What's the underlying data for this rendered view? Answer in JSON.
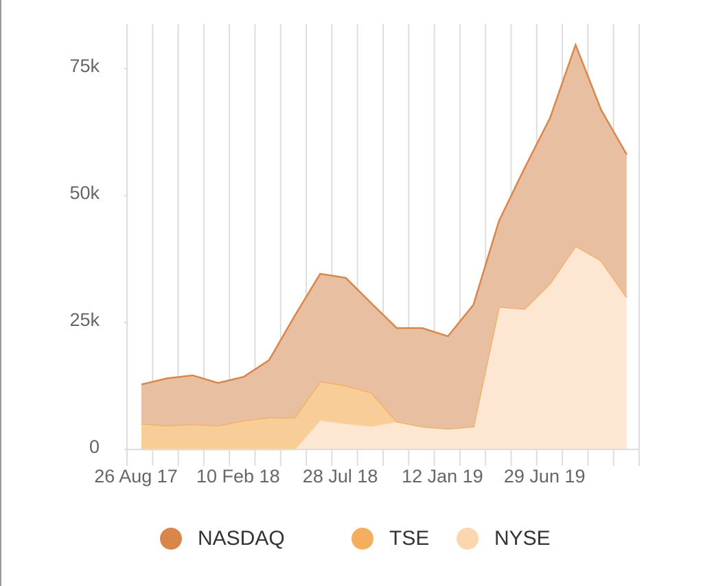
{
  "chart_data": {
    "type": "stacked_area",
    "categories": [
      "26 Aug 17",
      null,
      null,
      null,
      "10 Feb 18",
      null,
      null,
      null,
      "28 Jul 18",
      null,
      null,
      null,
      "12 Jan 19",
      null,
      null,
      null,
      "29 Jun 19",
      null,
      null,
      null
    ],
    "series": [
      {
        "name": "NASDAQ",
        "color": "#d9864a",
        "values": [
          7700,
          9300,
          9600,
          8400,
          8600,
          11300,
          20000,
          21200,
          21200,
          17600,
          18400,
          19400,
          18200,
          24000,
          16900,
          27700,
          32600,
          39600,
          29700,
          28100
        ]
      },
      {
        "name": "TSE",
        "color": "#f5ad5e",
        "values": [
          5100,
          4700,
          5000,
          4700,
          5700,
          6300,
          6300,
          7600,
          7500,
          6600,
          0,
          0,
          0,
          0,
          0,
          0,
          0,
          0,
          0,
          0
        ]
      },
      {
        "name": "NYSE",
        "color": "#fbd6ae",
        "values": [
          0,
          0,
          0,
          0,
          0,
          0,
          0,
          5800,
          5100,
          4600,
          5500,
          4500,
          4100,
          4500,
          28100,
          27700,
          32700,
          40100,
          37200,
          30000
        ]
      }
    ],
    "ylim": [
      0,
      83800
    ],
    "yticks": [
      0,
      {
        "value": 25000,
        "label": "25k"
      },
      {
        "value": 50000,
        "label": "50k"
      },
      {
        "value": 75000,
        "label": "75k"
      }
    ],
    "grid": true
  }
}
